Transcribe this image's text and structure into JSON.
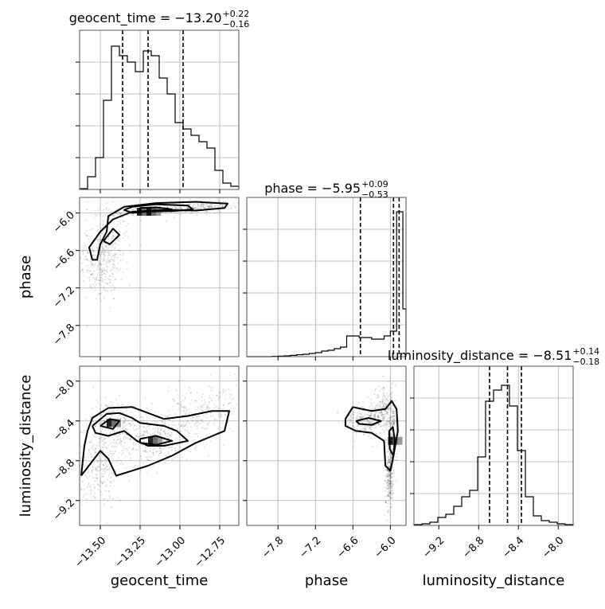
{
  "chart_data": {
    "type": "corner",
    "parameters": [
      "geocent_time",
      "phase",
      "luminosity_distance"
    ],
    "axis_labels": {
      "geocent_time": "geocent_time",
      "phase": "phase",
      "luminosity_distance": "luminosity_distance"
    },
    "ranges": {
      "geocent_time": [
        -13.63,
        -12.63
      ],
      "phase": [
        -8.3,
        -5.75
      ],
      "luminosity_distance": [
        -9.45,
        -7.85
      ]
    },
    "ticks": {
      "geocent_time": [
        -13.5,
        -13.25,
        -13.0,
        -12.75
      ],
      "phase": [
        -7.8,
        -7.2,
        -6.6,
        -6.0
      ],
      "luminosity_distance": [
        -9.2,
        -8.8,
        -8.4,
        -8.0
      ]
    },
    "tick_labels": {
      "geocent_time": [
        "−13.50",
        "−13.25",
        "−13.00",
        "−12.75"
      ],
      "phase": [
        "−7.8",
        "−7.2",
        "−6.6",
        "−6.0"
      ],
      "luminosity_distance": [
        "−9.2",
        "−8.8",
        "−8.4",
        "−8.0"
      ]
    },
    "titles": {
      "geocent_time": {
        "prefix": "geocent_time = ",
        "median": "−13.20",
        "plus": "+0.22",
        "minus": "−0.16"
      },
      "phase": {
        "prefix": "phase = ",
        "median": "−5.95",
        "plus": "+0.09",
        "minus": "−0.53"
      },
      "luminosity_distance": {
        "prefix": "luminosity_distance = ",
        "median": "−8.51",
        "plus": "+0.14",
        "minus": "−0.18"
      }
    },
    "quantiles": {
      "geocent_time": [
        -13.36,
        -13.2,
        -12.98
      ],
      "phase": [
        -6.48,
        -5.95,
        -5.86
      ],
      "luminosity_distance": [
        -8.69,
        -8.51,
        -8.37
      ]
    },
    "histograms": {
      "geocent_time": {
        "edges": [
          -13.63,
          -13.58,
          -13.53,
          -13.48,
          -13.43,
          -13.38,
          -13.33,
          -13.28,
          -13.23,
          -13.18,
          -13.13,
          -13.08,
          -13.03,
          -12.98,
          -12.93,
          -12.88,
          -12.83,
          -12.78,
          -12.73,
          -12.68,
          -12.63
        ],
        "counts": [
          0.005,
          0.08,
          0.2,
          0.56,
          0.9,
          0.84,
          0.8,
          0.74,
          0.87,
          0.84,
          0.7,
          0.6,
          0.42,
          0.38,
          0.34,
          0.3,
          0.26,
          0.12,
          0.04,
          0.02
        ]
      },
      "phase": {
        "edges": [
          -8.3,
          -8.2,
          -8.1,
          -8.0,
          -7.9,
          -7.8,
          -7.7,
          -7.6,
          -7.5,
          -7.4,
          -7.3,
          -7.2,
          -7.1,
          -7.0,
          -6.9,
          -6.8,
          -6.7,
          -6.6,
          -6.5,
          -6.4,
          -6.3,
          -6.2,
          -6.1,
          -6.0,
          -5.9,
          -5.8,
          -5.75
        ],
        "counts": [
          0,
          0,
          0,
          0,
          0.002,
          0.003,
          0.005,
          0.008,
          0.012,
          0.015,
          0.02,
          0.025,
          0.035,
          0.04,
          0.05,
          0.06,
          0.13,
          0.13,
          0.12,
          0.12,
          0.11,
          0.11,
          0.13,
          0.16,
          0.91,
          0.3
        ]
      },
      "luminosity_distance": {
        "edges": [
          -9.45,
          -9.37,
          -9.29,
          -9.21,
          -9.13,
          -9.05,
          -8.97,
          -8.89,
          -8.81,
          -8.73,
          -8.65,
          -8.57,
          -8.49,
          -8.41,
          -8.33,
          -8.25,
          -8.17,
          -8.09,
          -8.01,
          -7.93,
          -7.85
        ],
        "counts": [
          0.005,
          0.01,
          0.02,
          0.05,
          0.07,
          0.12,
          0.18,
          0.22,
          0.43,
          0.78,
          0.85,
          0.88,
          0.75,
          0.47,
          0.18,
          0.06,
          0.03,
          0.02,
          0.01,
          0.005
        ]
      }
    },
    "contours": {
      "phase_vs_geocent_time": [
        [
          [
            -13.55,
            -6.75
          ],
          [
            -13.57,
            -6.55
          ],
          [
            -13.5,
            -6.3
          ],
          [
            -13.42,
            -6.1
          ],
          [
            -13.3,
            -5.98
          ],
          [
            -13.1,
            -5.95
          ],
          [
            -12.9,
            -5.96
          ],
          [
            -12.72,
            -5.92
          ],
          [
            -12.7,
            -5.85
          ],
          [
            -12.9,
            -5.82
          ],
          [
            -13.15,
            -5.84
          ],
          [
            -13.35,
            -5.9
          ],
          [
            -13.45,
            -6.05
          ],
          [
            -13.46,
            -6.3
          ],
          [
            -13.5,
            -6.5
          ],
          [
            -13.52,
            -6.75
          ],
          [
            -13.55,
            -6.75
          ]
        ],
        [
          [
            -13.3,
            -6.0
          ],
          [
            -13.2,
            -5.97
          ],
          [
            -13.05,
            -5.97
          ],
          [
            -12.92,
            -5.94
          ],
          [
            -12.95,
            -5.88
          ],
          [
            -13.15,
            -5.86
          ],
          [
            -13.3,
            -5.9
          ],
          [
            -13.35,
            -5.95
          ],
          [
            -13.3,
            -6.0
          ]
        ],
        [
          [
            -13.25,
            -5.98
          ],
          [
            -13.12,
            -5.97
          ],
          [
            -13.05,
            -5.94
          ],
          [
            -13.15,
            -5.91
          ],
          [
            -13.25,
            -5.92
          ],
          [
            -13.25,
            -5.98
          ]
        ],
        [
          [
            -13.48,
            -6.45
          ],
          [
            -13.42,
            -6.25
          ],
          [
            -13.38,
            -6.35
          ],
          [
            -13.44,
            -6.5
          ],
          [
            -13.48,
            -6.45
          ]
        ]
      ],
      "luminosity_distance_vs_geocent_time": [
        [
          [
            -13.62,
            -8.95
          ],
          [
            -13.5,
            -8.7
          ],
          [
            -13.45,
            -8.78
          ],
          [
            -13.4,
            -8.95
          ],
          [
            -13.3,
            -8.9
          ],
          [
            -13.2,
            -8.85
          ],
          [
            -13.05,
            -8.75
          ],
          [
            -12.9,
            -8.62
          ],
          [
            -12.72,
            -8.5
          ],
          [
            -12.69,
            -8.3
          ],
          [
            -12.8,
            -8.3
          ],
          [
            -12.95,
            -8.35
          ],
          [
            -13.1,
            -8.38
          ],
          [
            -13.3,
            -8.26
          ],
          [
            -13.45,
            -8.27
          ],
          [
            -13.55,
            -8.37
          ],
          [
            -13.58,
            -8.5
          ],
          [
            -13.6,
            -8.65
          ],
          [
            -13.62,
            -8.95
          ]
        ],
        [
          [
            -13.55,
            -8.45
          ],
          [
            -13.46,
            -8.33
          ],
          [
            -13.38,
            -8.32
          ],
          [
            -13.3,
            -8.37
          ],
          [
            -13.25,
            -8.42
          ],
          [
            -13.1,
            -8.45
          ],
          [
            -13.02,
            -8.5
          ],
          [
            -12.95,
            -8.6
          ],
          [
            -13.1,
            -8.65
          ],
          [
            -13.2,
            -8.65
          ],
          [
            -13.27,
            -8.6
          ],
          [
            -13.35,
            -8.5
          ],
          [
            -13.45,
            -8.55
          ],
          [
            -13.53,
            -8.52
          ],
          [
            -13.55,
            -8.45
          ]
        ],
        [
          [
            -13.5,
            -8.45
          ],
          [
            -13.44,
            -8.38
          ],
          [
            -13.38,
            -8.4
          ],
          [
            -13.42,
            -8.48
          ],
          [
            -13.5,
            -8.45
          ]
        ],
        [
          [
            -13.25,
            -8.58
          ],
          [
            -13.15,
            -8.55
          ],
          [
            -13.05,
            -8.6
          ],
          [
            -13.15,
            -8.64
          ],
          [
            -13.25,
            -8.62
          ],
          [
            -13.25,
            -8.58
          ]
        ]
      ],
      "luminosity_distance_vs_phase": [
        [
          [
            -6.72,
            -8.38
          ],
          [
            -6.6,
            -8.26
          ],
          [
            -6.3,
            -8.3
          ],
          [
            -6.08,
            -8.28
          ],
          [
            -5.98,
            -8.2
          ],
          [
            -5.9,
            -8.28
          ],
          [
            -5.88,
            -8.5
          ],
          [
            -5.95,
            -8.75
          ],
          [
            -6.0,
            -8.9
          ],
          [
            -6.08,
            -8.85
          ],
          [
            -6.1,
            -8.6
          ],
          [
            -6.3,
            -8.52
          ],
          [
            -6.55,
            -8.5
          ],
          [
            -6.72,
            -8.45
          ],
          [
            -6.72,
            -8.38
          ]
        ],
        [
          [
            -6.55,
            -8.4
          ],
          [
            -6.35,
            -8.37
          ],
          [
            -6.15,
            -8.4
          ],
          [
            -6.3,
            -8.44
          ],
          [
            -6.5,
            -8.43
          ],
          [
            -6.55,
            -8.4
          ]
        ],
        [
          [
            -6.02,
            -8.5
          ],
          [
            -5.96,
            -8.46
          ],
          [
            -5.93,
            -8.6
          ],
          [
            -5.95,
            -8.75
          ],
          [
            -6.01,
            -8.68
          ],
          [
            -6.02,
            -8.5
          ]
        ]
      ]
    },
    "density_peaks": {
      "phase_vs_geocent_time": [
        [
          -13.24,
          -5.98
        ],
        [
          -13.18,
          -5.98
        ]
      ],
      "luminosity_distance_vs_geocent_time": [
        [
          -13.43,
          -8.42
        ],
        [
          -13.17,
          -8.6
        ]
      ],
      "luminosity_distance_vs_phase": [
        [
          -5.96,
          -8.6
        ]
      ]
    }
  }
}
